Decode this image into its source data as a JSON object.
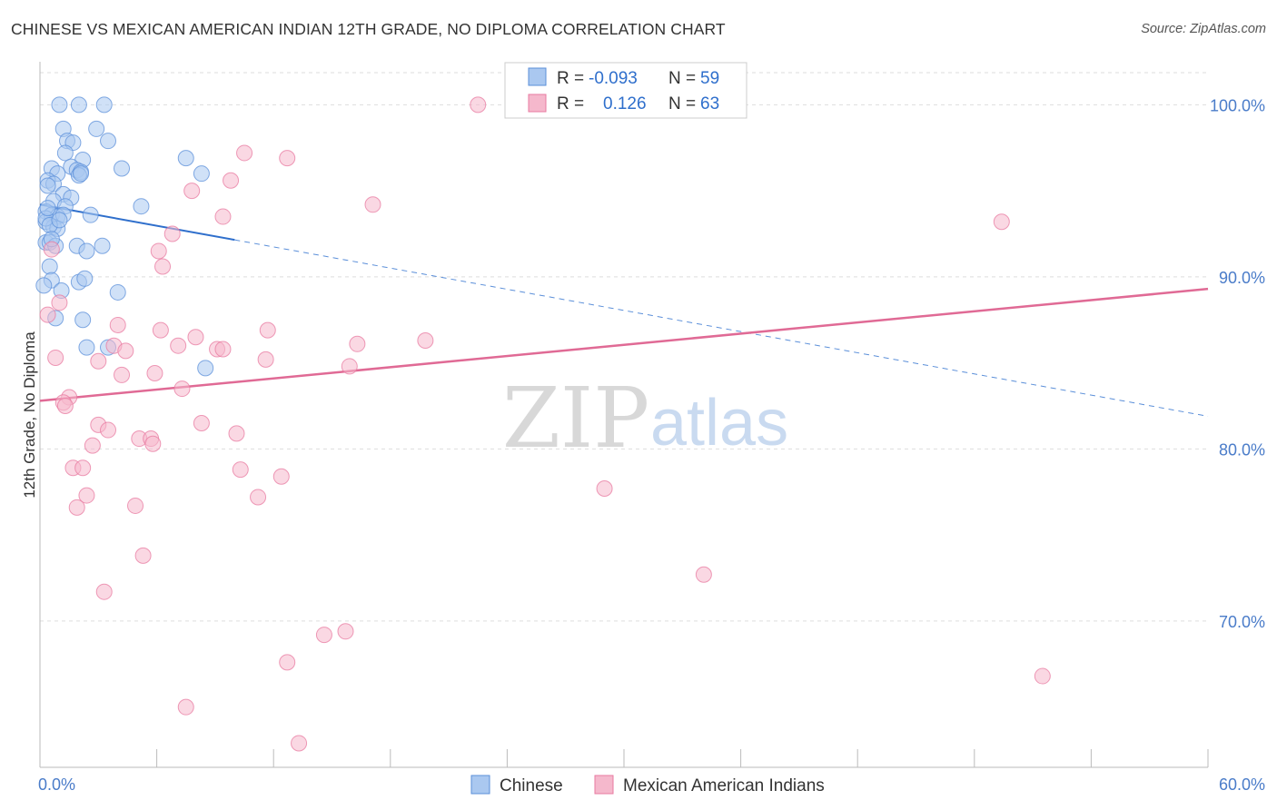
{
  "header": {
    "title": "CHINESE VS MEXICAN AMERICAN INDIAN 12TH GRADE, NO DIPLOMA CORRELATION CHART",
    "source": "Source: ZipAtlas.com"
  },
  "watermark": {
    "zip": "ZIP",
    "atlas": "atlas"
  },
  "colors": {
    "chinese": "#5b8fd9",
    "chinese_fill": "#aac8f0",
    "mexican": "#e87aa0",
    "mexican_fill": "#f5b8cc",
    "value_text": "#2f6fcc",
    "grid": "#dddddd"
  },
  "legend_box": {
    "rows": [
      {
        "r_label": "R = ",
        "r_value": "-0.093",
        "n_label": "N = ",
        "n_value": "59"
      },
      {
        "r_label": "R = ",
        "r_value": "0.126",
        "n_label": "N = ",
        "n_value": "63"
      }
    ]
  },
  "chart_data": {
    "type": "scatter",
    "title": "CHINESE VS MEXICAN AMERICAN INDIAN 12TH GRADE, NO DIPLOMA CORRELATION CHART",
    "xlabel": "",
    "ylabel": "12th Grade, No Diploma",
    "xlim": [
      0,
      60
    ],
    "ylim": [
      61.5,
      102.5
    ],
    "x_tick_labels": [
      "0.0%",
      "60.0%"
    ],
    "y_ticks": [
      70,
      80,
      90,
      100
    ],
    "y_tick_labels": [
      "70.0%",
      "80.0%",
      "90.0%",
      "100.0%"
    ],
    "grid": true,
    "legend_placement": "bottom-center",
    "series": [
      {
        "name": "Chinese",
        "r": -0.093,
        "n": 59,
        "trend": {
          "x0": 0,
          "y0": 94.2,
          "x1": 60,
          "y1": 81.9,
          "solid_until_x": 10
        },
        "points": [
          [
            1.0,
            100.0
          ],
          [
            2.0,
            100.0
          ],
          [
            3.3,
            100.0
          ],
          [
            1.2,
            98.6
          ],
          [
            2.9,
            98.6
          ],
          [
            1.4,
            97.9
          ],
          [
            3.5,
            97.9
          ],
          [
            1.7,
            97.8
          ],
          [
            1.3,
            97.2
          ],
          [
            2.2,
            96.8
          ],
          [
            7.5,
            96.9
          ],
          [
            0.6,
            96.3
          ],
          [
            1.6,
            96.4
          ],
          [
            4.2,
            96.3
          ],
          [
            1.9,
            96.2
          ],
          [
            2.1,
            96.1
          ],
          [
            0.9,
            96.0
          ],
          [
            8.3,
            96.0
          ],
          [
            2.0,
            95.9
          ],
          [
            0.4,
            95.6
          ],
          [
            0.7,
            95.4
          ],
          [
            1.2,
            94.8
          ],
          [
            1.6,
            94.6
          ],
          [
            0.7,
            94.4
          ],
          [
            1.3,
            94.1
          ],
          [
            5.2,
            94.1
          ],
          [
            0.3,
            93.8
          ],
          [
            0.6,
            93.6
          ],
          [
            0.9,
            93.5
          ],
          [
            1.2,
            93.6
          ],
          [
            2.6,
            93.6
          ],
          [
            0.3,
            93.2
          ],
          [
            0.7,
            92.9
          ],
          [
            0.9,
            92.8
          ],
          [
            0.3,
            92.0
          ],
          [
            0.5,
            92.0
          ],
          [
            0.8,
            91.8
          ],
          [
            1.9,
            91.8
          ],
          [
            3.2,
            91.8
          ],
          [
            2.4,
            91.5
          ],
          [
            0.5,
            90.6
          ],
          [
            0.6,
            89.8
          ],
          [
            2.0,
            89.7
          ],
          [
            0.2,
            89.5
          ],
          [
            1.1,
            89.2
          ],
          [
            4.0,
            89.1
          ],
          [
            0.8,
            87.6
          ],
          [
            2.2,
            87.5
          ],
          [
            2.4,
            85.9
          ],
          [
            3.5,
            85.9
          ],
          [
            8.5,
            84.7
          ],
          [
            0.3,
            93.4
          ],
          [
            0.5,
            93.0
          ],
          [
            0.4,
            95.3
          ],
          [
            0.4,
            94.0
          ],
          [
            1.0,
            93.3
          ],
          [
            2.1,
            96.0
          ],
          [
            0.6,
            92.2
          ],
          [
            2.3,
            89.9
          ]
        ]
      },
      {
        "name": "Mexican American Indians",
        "r": 0.126,
        "n": 63,
        "trend": {
          "x0": 0,
          "y0": 82.8,
          "x1": 60,
          "y1": 89.3
        },
        "points": [
          [
            22.5,
            100.0
          ],
          [
            28.8,
            100.0
          ],
          [
            32.9,
            100.0
          ],
          [
            10.5,
            97.2
          ],
          [
            12.7,
            96.9
          ],
          [
            9.8,
            95.6
          ],
          [
            7.8,
            95.0
          ],
          [
            17.1,
            94.2
          ],
          [
            9.4,
            93.5
          ],
          [
            49.4,
            93.2
          ],
          [
            6.8,
            92.5
          ],
          [
            0.6,
            91.6
          ],
          [
            6.3,
            90.6
          ],
          [
            0.4,
            87.8
          ],
          [
            4.0,
            87.2
          ],
          [
            6.2,
            86.9
          ],
          [
            11.7,
            86.9
          ],
          [
            8.0,
            86.5
          ],
          [
            19.8,
            86.3
          ],
          [
            16.3,
            86.1
          ],
          [
            7.1,
            86.0
          ],
          [
            3.8,
            86.0
          ],
          [
            4.4,
            85.7
          ],
          [
            9.1,
            85.8
          ],
          [
            9.4,
            85.8
          ],
          [
            0.8,
            85.3
          ],
          [
            11.6,
            85.2
          ],
          [
            15.9,
            84.8
          ],
          [
            4.2,
            84.3
          ],
          [
            5.9,
            84.4
          ],
          [
            7.3,
            83.5
          ],
          [
            1.5,
            83.0
          ],
          [
            1.2,
            82.7
          ],
          [
            1.3,
            82.5
          ],
          [
            8.3,
            81.5
          ],
          [
            3.0,
            81.4
          ],
          [
            3.5,
            81.1
          ],
          [
            10.1,
            80.9
          ],
          [
            5.1,
            80.6
          ],
          [
            5.7,
            80.6
          ],
          [
            5.8,
            80.3
          ],
          [
            2.7,
            80.2
          ],
          [
            1.7,
            78.9
          ],
          [
            2.2,
            78.9
          ],
          [
            10.3,
            78.8
          ],
          [
            12.4,
            78.4
          ],
          [
            29.0,
            77.7
          ],
          [
            11.2,
            77.2
          ],
          [
            2.4,
            77.3
          ],
          [
            1.9,
            76.6
          ],
          [
            4.9,
            76.7
          ],
          [
            5.3,
            73.8
          ],
          [
            34.1,
            72.7
          ],
          [
            3.3,
            71.7
          ],
          [
            14.6,
            69.2
          ],
          [
            15.7,
            69.4
          ],
          [
            12.7,
            67.6
          ],
          [
            51.5,
            66.8
          ],
          [
            7.5,
            65.0
          ],
          [
            13.3,
            62.9
          ],
          [
            1.0,
            88.5
          ],
          [
            6.1,
            91.5
          ],
          [
            3.0,
            85.1
          ]
        ]
      }
    ]
  },
  "bottom_legend": [
    {
      "label": "Chinese"
    },
    {
      "label": "Mexican American Indians"
    }
  ]
}
